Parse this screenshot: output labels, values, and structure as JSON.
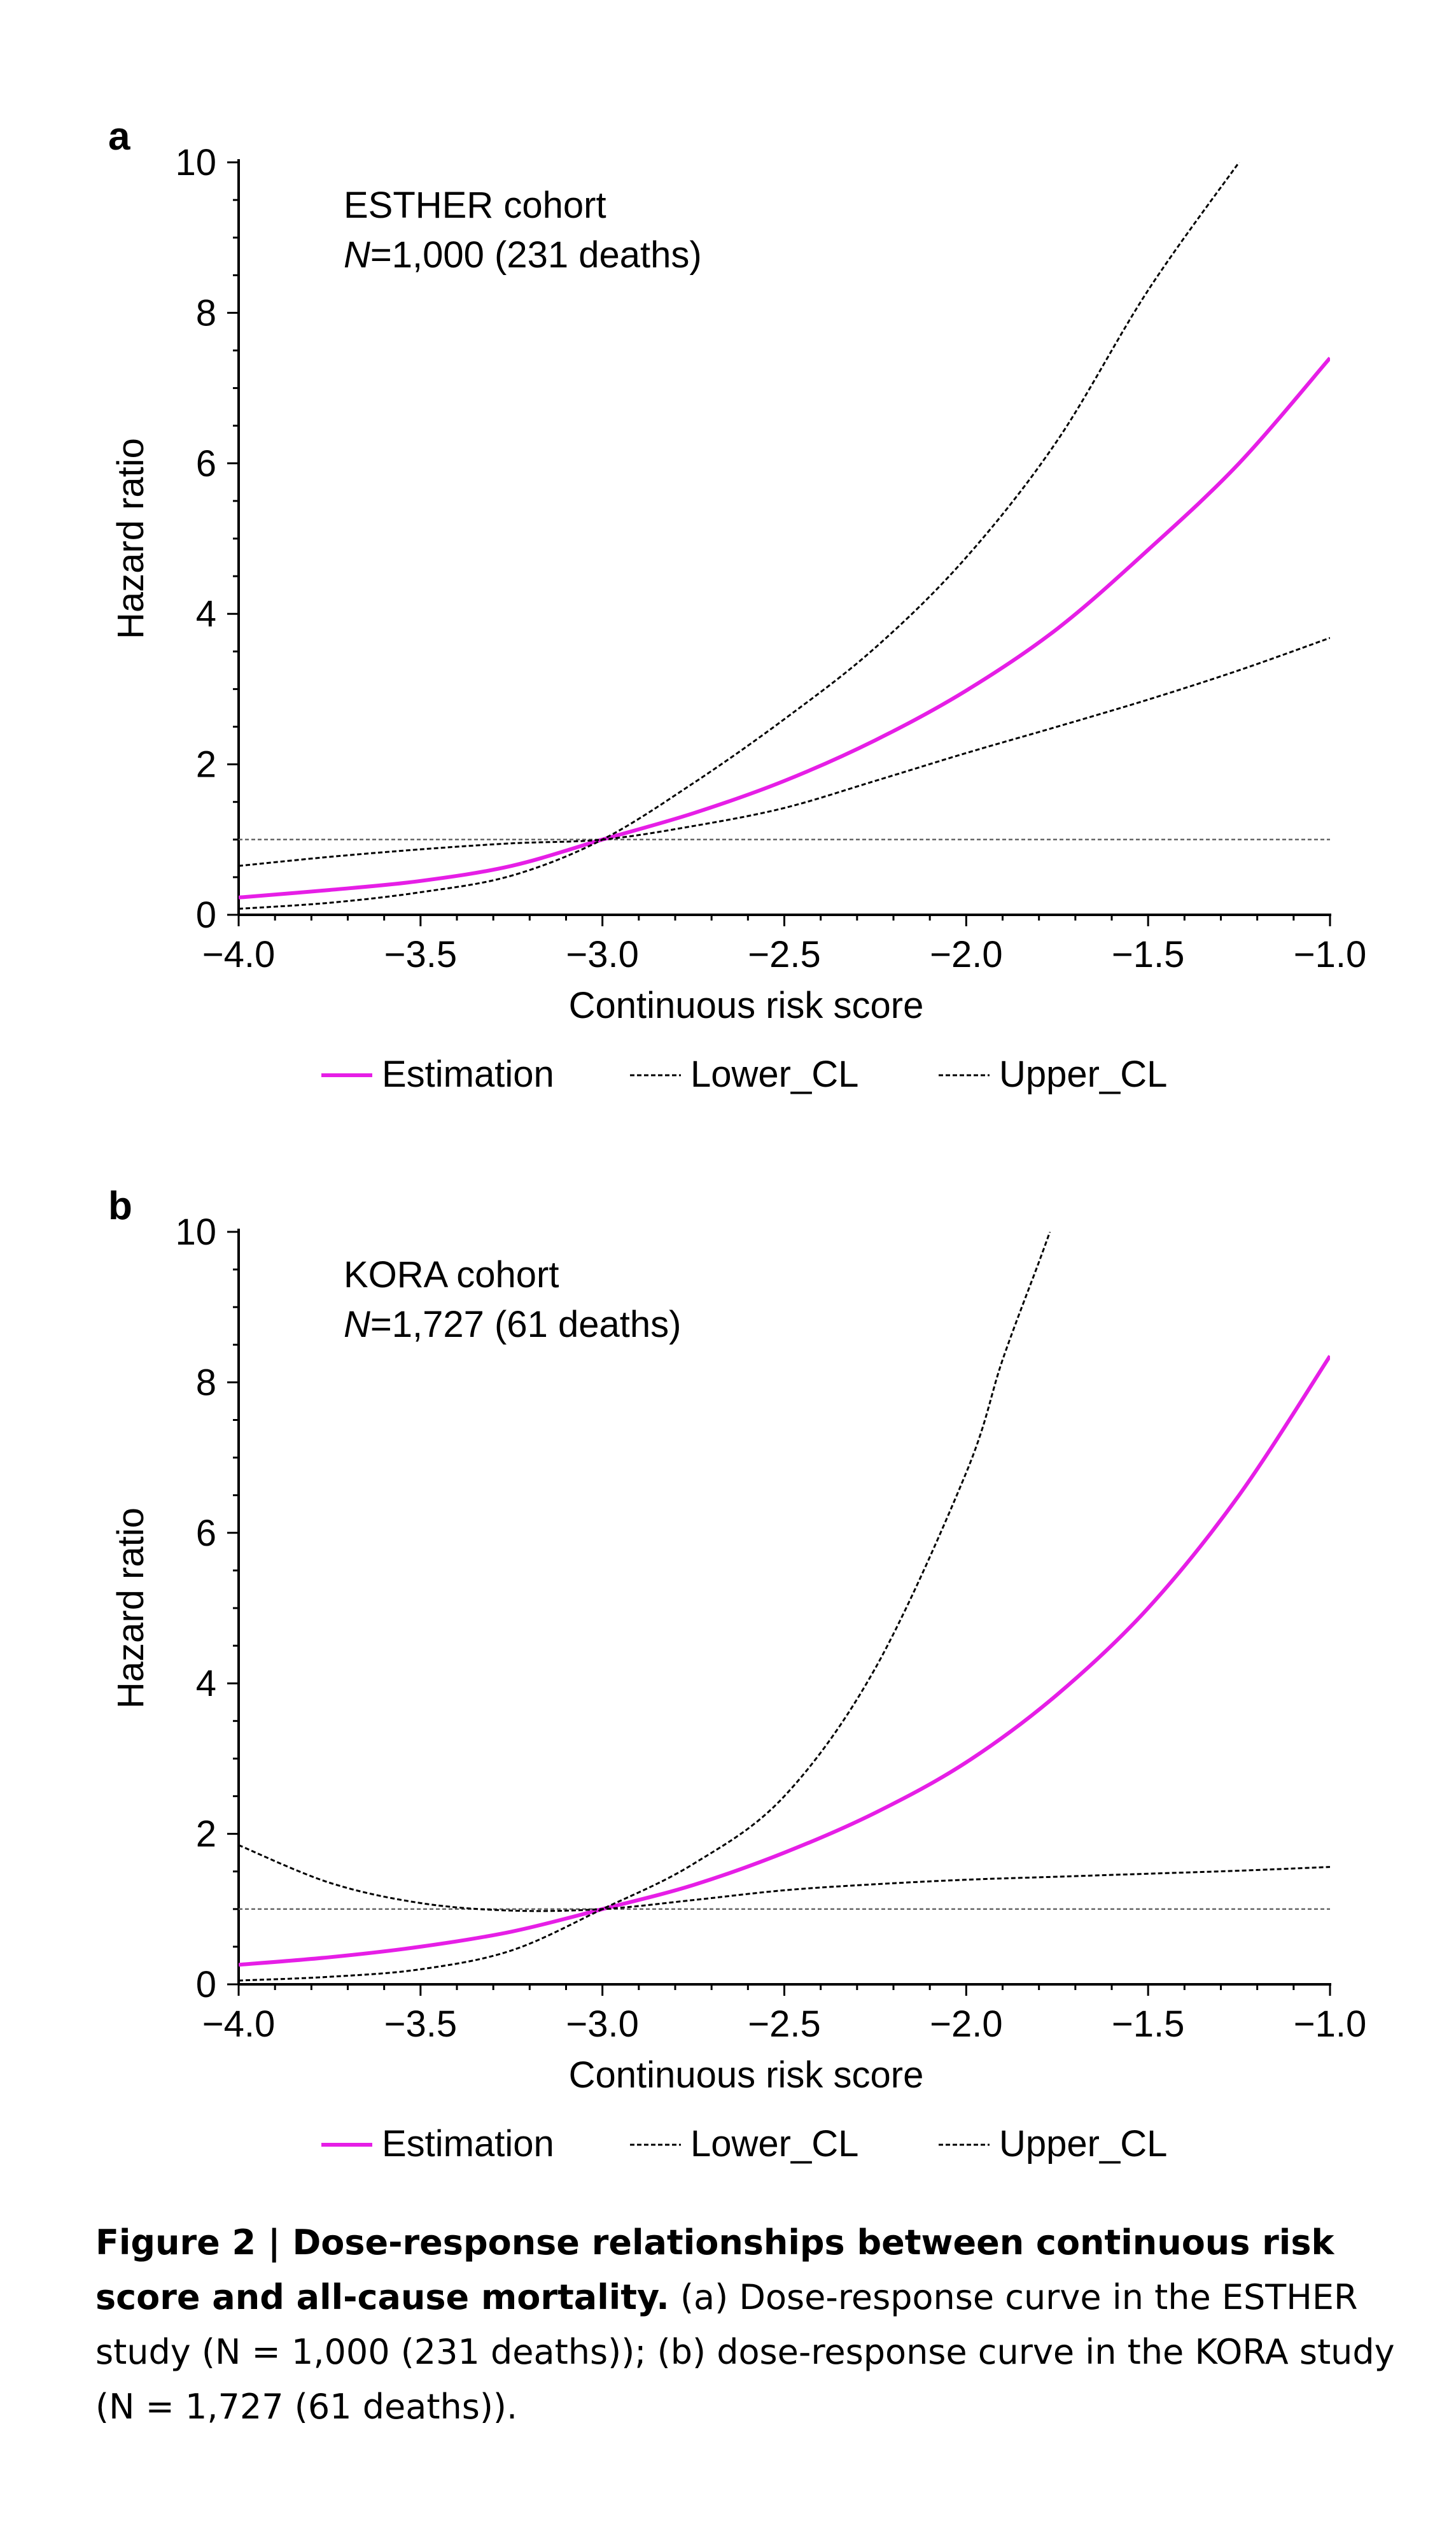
{
  "chart_data": [
    {
      "panel": "a",
      "type": "line",
      "annotation": [
        "ESTHER cohort",
        "N=1,000 (231 deaths)"
      ],
      "xlabel": "Continuous risk score",
      "ylabel": "Hazard ratio",
      "xlim": [
        -4.0,
        -1.0
      ],
      "ylim": [
        0,
        10
      ],
      "xticks": [
        "−4.0",
        "−3.5",
        "−3.0",
        "−2.5",
        "−2.0",
        "−1.5",
        "−1.0"
      ],
      "yticks": [
        "0",
        "2",
        "4",
        "6",
        "8",
        "10"
      ],
      "reference_line_y": 1,
      "legend": [
        "Estimation",
        "Lower_CL",
        "Upper_CL"
      ],
      "legend_placement": "bottom",
      "series": [
        {
          "name": "Estimation",
          "color": "#e61ee6",
          "style": "solid",
          "x": [
            -4.0,
            -3.75,
            -3.5,
            -3.25,
            -3.0,
            -2.75,
            -2.5,
            -2.25,
            -2.0,
            -1.75,
            -1.5,
            -1.25,
            -1.0
          ],
          "y": [
            0.23,
            0.33,
            0.45,
            0.65,
            1.0,
            1.35,
            1.78,
            2.32,
            2.98,
            3.8,
            4.85,
            6.0,
            7.4
          ]
        },
        {
          "name": "Lower_CL",
          "color": "#000000",
          "style": "dashed",
          "x": [
            -4.0,
            -3.75,
            -3.5,
            -3.25,
            -3.0,
            -2.75,
            -2.5,
            -2.25,
            -2.0,
            -1.75,
            -1.5,
            -1.25,
            -1.0
          ],
          "y": [
            0.08,
            0.16,
            0.3,
            0.52,
            1.0,
            1.75,
            2.6,
            3.55,
            4.75,
            6.3,
            8.3,
            10.0,
            null
          ]
        },
        {
          "name": "Upper_CL",
          "color": "#000000",
          "style": "dashed",
          "x": [
            -4.0,
            -3.75,
            -3.5,
            -3.25,
            -3.0,
            -2.75,
            -2.5,
            -2.25,
            -2.0,
            -1.75,
            -1.5,
            -1.25,
            -1.0
          ],
          "y": [
            0.65,
            0.77,
            0.87,
            0.95,
            1.0,
            1.18,
            1.42,
            1.78,
            2.15,
            2.5,
            2.86,
            3.25,
            3.68
          ]
        }
      ]
    },
    {
      "panel": "b",
      "type": "line",
      "annotation": [
        "KORA cohort",
        "N=1,727 (61 deaths)"
      ],
      "xlabel": "Continuous risk score",
      "ylabel": "Hazard ratio",
      "xlim": [
        -4.0,
        -1.0
      ],
      "ylim": [
        0,
        10
      ],
      "xticks": [
        "−4.0",
        "−3.5",
        "−3.0",
        "−2.5",
        "−2.0",
        "−1.5",
        "−1.0"
      ],
      "yticks": [
        "0",
        "2",
        "4",
        "6",
        "8",
        "10"
      ],
      "reference_line_y": 1,
      "legend": [
        "Estimation",
        "Lower_CL",
        "Upper_CL"
      ],
      "legend_placement": "bottom",
      "series": [
        {
          "name": "Estimation",
          "color": "#e61ee6",
          "style": "solid",
          "x": [
            -4.0,
            -3.75,
            -3.5,
            -3.25,
            -3.0,
            -2.75,
            -2.5,
            -2.25,
            -2.0,
            -1.75,
            -1.5,
            -1.25,
            -1.0
          ],
          "y": [
            0.26,
            0.36,
            0.5,
            0.7,
            1.0,
            1.32,
            1.75,
            2.28,
            2.95,
            3.85,
            5.0,
            6.5,
            8.35
          ]
        },
        {
          "name": "Lower_CL",
          "color": "#000000",
          "style": "dashed",
          "x": [
            -4.0,
            -3.75,
            -3.5,
            -3.25,
            -3.0,
            -2.75,
            -2.5,
            -2.25,
            -2.0,
            -1.9,
            -1.8,
            -1.77
          ],
          "y": [
            0.05,
            0.1,
            0.2,
            0.45,
            1.0,
            1.6,
            2.5,
            4.2,
            6.8,
            8.3,
            9.6,
            10.0
          ]
        },
        {
          "name": "Upper_CL",
          "color": "#000000",
          "style": "dashed",
          "x": [
            -4.0,
            -3.75,
            -3.5,
            -3.25,
            -3.0,
            -2.75,
            -2.5,
            -2.25,
            -2.0,
            -1.75,
            -1.5,
            -1.25,
            -1.0
          ],
          "y": [
            1.85,
            1.35,
            1.08,
            0.98,
            1.0,
            1.12,
            1.25,
            1.33,
            1.39,
            1.43,
            1.47,
            1.51,
            1.56
          ]
        }
      ]
    }
  ],
  "caption": {
    "bold": "Figure 2 | Dose-response relationships between continuous risk score and all-cause mortality.",
    "text": " (a) Dose-response curve in the ESTHER study (N = 1,000 (231 deaths)); (b) dose-response curve in the KORA study (N = 1,727 (61 deaths))."
  }
}
